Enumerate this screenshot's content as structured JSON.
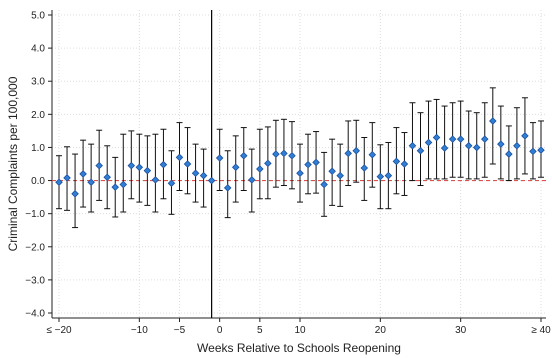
{
  "chart_data": {
    "type": "scatter",
    "title": "",
    "xlabel": "Weeks Relative to Schools Reopening",
    "ylabel": "Criminal Complaints per 100,000",
    "xlim": [
      -20,
      40
    ],
    "ylim": [
      -4.0,
      5.0
    ],
    "grid": true,
    "legend": "none",
    "x_ticks": [
      {
        "value": -20,
        "label": "≤ −20"
      },
      {
        "value": -10,
        "label": "−10"
      },
      {
        "value": -5,
        "label": "−5"
      },
      {
        "value": 0,
        "label": "0"
      },
      {
        "value": 5,
        "label": "5"
      },
      {
        "value": 10,
        "label": "10"
      },
      {
        "value": 20,
        "label": "20"
      },
      {
        "value": 30,
        "label": "30"
      },
      {
        "value": 40,
        "label": "≥ 40"
      }
    ],
    "y_ticks": [
      {
        "value": -4,
        "label": "−4.0"
      },
      {
        "value": -3,
        "label": "−3.0"
      },
      {
        "value": -2,
        "label": "−2.0"
      },
      {
        "value": -1,
        "label": "−1.0"
      },
      {
        "value": 0,
        "label": "0.0"
      },
      {
        "value": 1,
        "label": "1.0"
      },
      {
        "value": 2,
        "label": "2.0"
      },
      {
        "value": 3,
        "label": "3.0"
      },
      {
        "value": 4,
        "label": "4.0"
      },
      {
        "value": 5,
        "label": "5.0"
      }
    ],
    "reference_lines": {
      "vertical_x": -1,
      "horizontal_y": 0
    },
    "colors": {
      "marker": "#2f7fd6",
      "marker_edge": "#1f4f9a",
      "error_bar": "#111111",
      "zero_line": "#d9534f",
      "grid": "#dddddd"
    },
    "series": [
      {
        "x": [
          -20,
          -19,
          -18,
          -17,
          -16,
          -15,
          -14,
          -13,
          -12,
          -11,
          -10,
          -9,
          -8,
          -7,
          -6,
          -5,
          -4,
          -3,
          -2,
          -1,
          0,
          1,
          2,
          3,
          4,
          5,
          6,
          7,
          8,
          9,
          10,
          11,
          12,
          13,
          14,
          15,
          16,
          17,
          18,
          19,
          20,
          21,
          22,
          23,
          24,
          25,
          26,
          27,
          28,
          29,
          30,
          31,
          32,
          33,
          34,
          35,
          36,
          37,
          38,
          39,
          40
        ],
        "y": [
          -0.05,
          0.08,
          -0.4,
          0.2,
          -0.05,
          0.45,
          0.1,
          -0.2,
          -0.12,
          0.45,
          0.4,
          0.3,
          0.02,
          0.48,
          -0.08,
          0.7,
          0.5,
          0.22,
          0.15,
          0.0,
          0.68,
          -0.22,
          0.4,
          0.75,
          0.02,
          0.35,
          0.52,
          0.8,
          0.82,
          0.75,
          0.22,
          0.48,
          0.55,
          -0.12,
          0.28,
          0.15,
          0.82,
          0.9,
          0.38,
          0.78,
          0.12,
          0.15,
          0.58,
          0.5,
          1.05,
          0.9,
          1.15,
          1.3,
          0.98,
          1.25,
          1.25,
          1.05,
          1.0,
          1.25,
          1.8,
          1.1,
          0.8,
          1.05,
          1.35,
          0.88,
          0.92
        ],
        "lower": [
          -0.85,
          -0.9,
          -1.42,
          -0.8,
          -0.95,
          -0.6,
          -0.85,
          -1.1,
          -0.95,
          -0.55,
          -0.65,
          -0.75,
          -0.95,
          -0.55,
          -1.02,
          -0.3,
          -0.4,
          -0.65,
          -0.8,
          0.0,
          -0.3,
          -1.12,
          -0.65,
          -0.3,
          -0.95,
          -0.55,
          -0.55,
          -0.2,
          -0.15,
          -0.25,
          -0.65,
          -0.4,
          -0.38,
          -1.08,
          -0.75,
          -0.78,
          -0.15,
          -0.05,
          -0.6,
          -0.2,
          -0.85,
          -0.85,
          -0.4,
          -0.45,
          0.0,
          -0.15,
          0.05,
          0.05,
          0.05,
          0.1,
          0.1,
          0.05,
          0.05,
          0.1,
          0.5,
          0.05,
          0.0,
          0.05,
          0.2,
          0.05,
          0.1
        ],
        "upper": [
          0.75,
          1.02,
          0.8,
          1.22,
          1.1,
          1.52,
          1.05,
          0.7,
          1.4,
          1.5,
          1.4,
          1.35,
          1.4,
          1.55,
          0.9,
          1.75,
          1.6,
          1.1,
          0.95,
          0.0,
          1.55,
          0.9,
          1.35,
          1.6,
          0.95,
          1.55,
          1.62,
          1.82,
          1.85,
          1.78,
          1.1,
          1.4,
          1.48,
          0.85,
          1.25,
          1.1,
          1.8,
          1.82,
          1.3,
          1.75,
          1.08,
          1.15,
          1.6,
          1.45,
          2.35,
          2.05,
          2.4,
          2.45,
          2.25,
          2.35,
          2.4,
          2.1,
          2.05,
          2.35,
          2.8,
          2.25,
          1.65,
          2.2,
          2.5,
          1.75,
          1.8
        ]
      }
    ]
  }
}
